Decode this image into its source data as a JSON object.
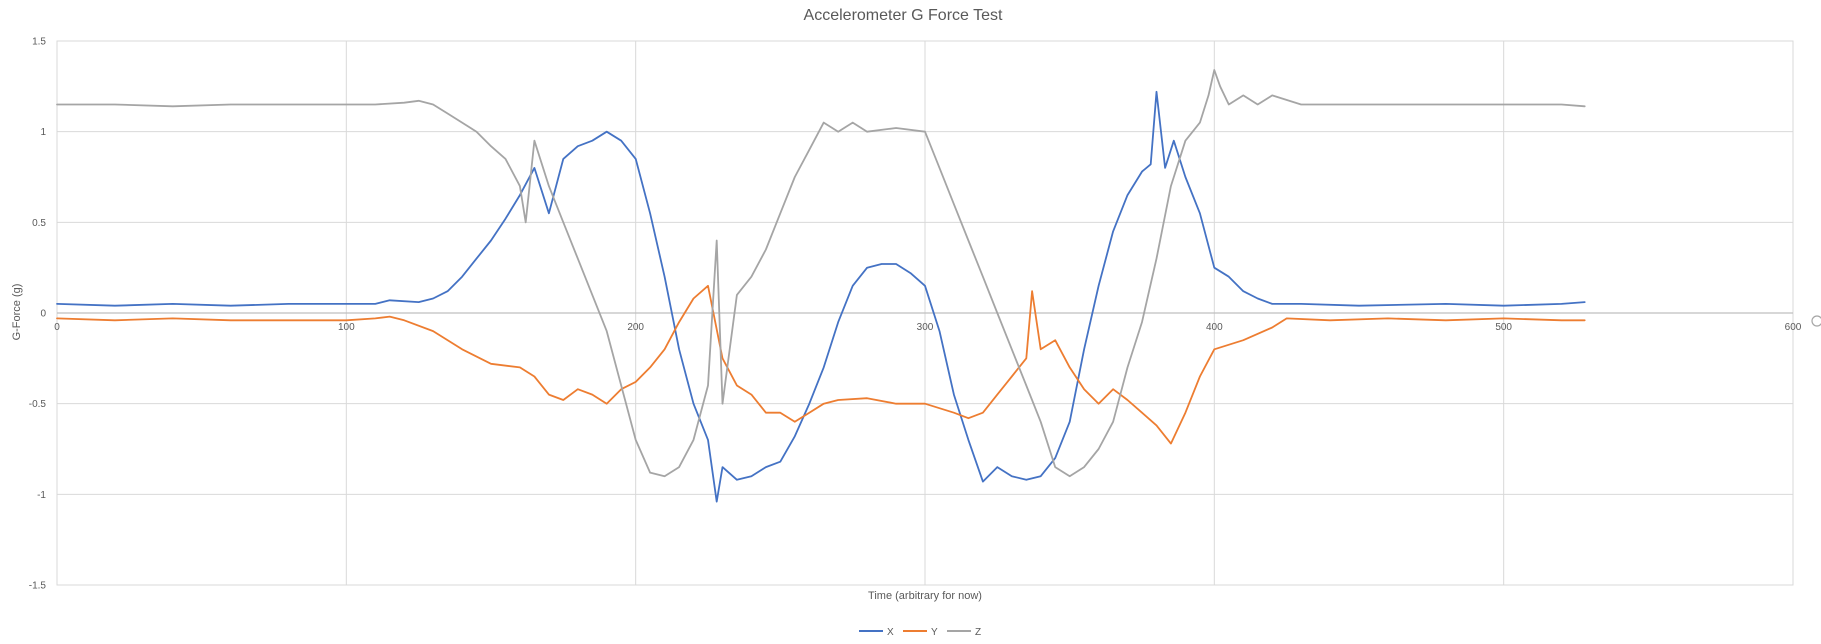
{
  "chart_data": {
    "type": "line",
    "title": "Accelerometer G Force Test",
    "xlabel": "Time (arbitrary for now)",
    "ylabel": "G-Force (g)",
    "xlim": [
      0,
      600
    ],
    "ylim": [
      -1.5,
      1.5
    ],
    "xticks": [
      0,
      100,
      200,
      300,
      400,
      500,
      600
    ],
    "yticks": [
      1.5,
      1,
      0.5,
      0,
      -0.5,
      -1,
      -1.5
    ],
    "ytick_labels": [
      "1.5",
      "1",
      "0.5",
      "0",
      "-0.5",
      "-1",
      "-1.5"
    ],
    "grid": true,
    "legend_position": "bottom",
    "series": [
      {
        "name": "X",
        "color": "#4472c4",
        "x": [
          0,
          20,
          40,
          60,
          80,
          100,
          110,
          115,
          125,
          130,
          135,
          140,
          145,
          150,
          155,
          160,
          165,
          170,
          175,
          180,
          185,
          190,
          195,
          200,
          205,
          210,
          215,
          220,
          225,
          228,
          230,
          235,
          240,
          245,
          250,
          255,
          260,
          265,
          270,
          275,
          280,
          285,
          290,
          295,
          300,
          305,
          310,
          315,
          320,
          325,
          330,
          335,
          340,
          345,
          350,
          355,
          360,
          365,
          370,
          375,
          378,
          380,
          383,
          386,
          390,
          395,
          400,
          405,
          410,
          415,
          420,
          430,
          450,
          480,
          500,
          520,
          528
        ],
        "y": [
          0.05,
          0.04,
          0.05,
          0.04,
          0.05,
          0.05,
          0.05,
          0.07,
          0.06,
          0.08,
          0.12,
          0.2,
          0.3,
          0.4,
          0.52,
          0.65,
          0.8,
          0.55,
          0.85,
          0.92,
          0.95,
          1.0,
          0.95,
          0.85,
          0.55,
          0.2,
          -0.2,
          -0.5,
          -0.7,
          -1.04,
          -0.85,
          -0.92,
          -0.9,
          -0.85,
          -0.82,
          -0.68,
          -0.5,
          -0.3,
          -0.05,
          0.15,
          0.25,
          0.27,
          0.27,
          0.22,
          0.15,
          -0.1,
          -0.45,
          -0.7,
          -0.93,
          -0.85,
          -0.9,
          -0.92,
          -0.9,
          -0.8,
          -0.6,
          -0.2,
          0.15,
          0.45,
          0.65,
          0.78,
          0.82,
          1.22,
          0.8,
          0.95,
          0.75,
          0.55,
          0.25,
          0.2,
          0.12,
          0.08,
          0.05,
          0.05,
          0.04,
          0.05,
          0.04,
          0.05,
          0.06
        ]
      },
      {
        "name": "Y",
        "color": "#ed7d31",
        "x": [
          0,
          20,
          40,
          60,
          80,
          100,
          110,
          115,
          120,
          130,
          140,
          150,
          160,
          165,
          170,
          175,
          180,
          185,
          190,
          195,
          200,
          205,
          210,
          215,
          220,
          225,
          230,
          235,
          240,
          245,
          250,
          255,
          260,
          265,
          270,
          280,
          290,
          300,
          310,
          315,
          320,
          325,
          330,
          335,
          337,
          340,
          345,
          350,
          355,
          360,
          365,
          370,
          375,
          380,
          385,
          390,
          395,
          400,
          410,
          420,
          425,
          440,
          460,
          480,
          500,
          520,
          528
        ],
        "y": [
          -0.03,
          -0.04,
          -0.03,
          -0.04,
          -0.04,
          -0.04,
          -0.03,
          -0.02,
          -0.04,
          -0.1,
          -0.2,
          -0.28,
          -0.3,
          -0.35,
          -0.45,
          -0.48,
          -0.42,
          -0.45,
          -0.5,
          -0.42,
          -0.38,
          -0.3,
          -0.2,
          -0.05,
          0.08,
          0.15,
          -0.25,
          -0.4,
          -0.45,
          -0.55,
          -0.55,
          -0.6,
          -0.55,
          -0.5,
          -0.48,
          -0.47,
          -0.5,
          -0.5,
          -0.55,
          -0.58,
          -0.55,
          -0.45,
          -0.35,
          -0.25,
          0.12,
          -0.2,
          -0.15,
          -0.3,
          -0.42,
          -0.5,
          -0.42,
          -0.48,
          -0.55,
          -0.62,
          -0.72,
          -0.55,
          -0.35,
          -0.2,
          -0.15,
          -0.08,
          -0.03,
          -0.04,
          -0.03,
          -0.04,
          -0.03,
          -0.04,
          -0.04
        ]
      },
      {
        "name": "Z",
        "color": "#a5a5a5",
        "x": [
          0,
          20,
          40,
          60,
          80,
          100,
          110,
          120,
          125,
          130,
          135,
          140,
          145,
          150,
          155,
          160,
          162,
          165,
          170,
          175,
          180,
          185,
          190,
          195,
          200,
          205,
          210,
          215,
          220,
          225,
          228,
          230,
          235,
          240,
          245,
          250,
          255,
          260,
          265,
          270,
          275,
          280,
          290,
          300,
          305,
          310,
          315,
          320,
          325,
          330,
          335,
          340,
          345,
          350,
          355,
          360,
          365,
          370,
          375,
          380,
          385,
          390,
          395,
          398,
          400,
          402,
          405,
          410,
          415,
          420,
          430,
          450,
          480,
          500,
          520,
          528
        ],
        "y": [
          1.15,
          1.15,
          1.14,
          1.15,
          1.15,
          1.15,
          1.15,
          1.16,
          1.17,
          1.15,
          1.1,
          1.05,
          1.0,
          0.92,
          0.85,
          0.7,
          0.5,
          0.95,
          0.7,
          0.5,
          0.3,
          0.1,
          -0.1,
          -0.4,
          -0.7,
          -0.88,
          -0.9,
          -0.85,
          -0.7,
          -0.4,
          0.4,
          -0.5,
          0.1,
          0.2,
          0.35,
          0.55,
          0.75,
          0.9,
          1.05,
          1.0,
          1.05,
          1.0,
          1.02,
          1.0,
          0.8,
          0.6,
          0.4,
          0.2,
          0.0,
          -0.2,
          -0.4,
          -0.6,
          -0.85,
          -0.9,
          -0.85,
          -0.75,
          -0.6,
          -0.3,
          -0.05,
          0.3,
          0.7,
          0.95,
          1.05,
          1.2,
          1.34,
          1.25,
          1.15,
          1.2,
          1.15,
          1.2,
          1.15,
          1.15,
          1.15,
          1.15,
          1.15,
          1.14
        ]
      }
    ]
  }
}
